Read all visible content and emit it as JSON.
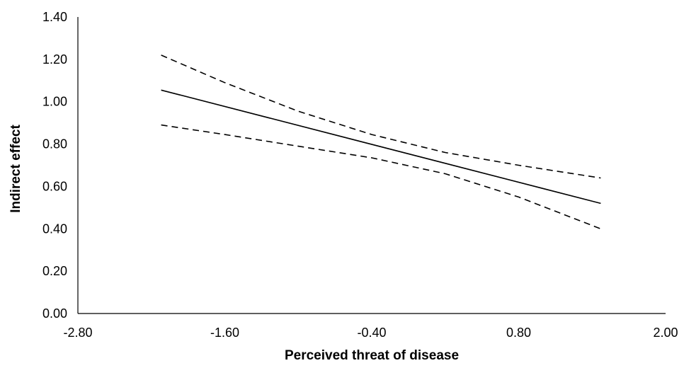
{
  "chart_data": {
    "type": "line",
    "title": "",
    "xlabel": "Perceived threat of disease",
    "ylabel": "Indirect effect",
    "xlim": [
      -2.8,
      2.0
    ],
    "ylim": [
      0.0,
      1.4
    ],
    "x_ticks": [
      "-2.80",
      "-1.60",
      "-0.40",
      "0.80",
      "2.00"
    ],
    "y_ticks": [
      "0.00",
      "0.20",
      "0.40",
      "0.60",
      "0.80",
      "1.00",
      "1.20",
      "1.40"
    ],
    "grid": false,
    "legend": "none",
    "series": [
      {
        "style": "solid",
        "color": "#000000",
        "x": [
          -2.12,
          1.47
        ],
        "y": [
          1.055,
          0.52
        ]
      },
      {
        "style": "dashed",
        "color": "#000000",
        "x": [
          -2.12,
          -1.6,
          -1.0,
          -0.4,
          0.2,
          0.8,
          1.47
        ],
        "y": [
          1.22,
          1.09,
          0.955,
          0.845,
          0.76,
          0.7,
          0.64
        ]
      },
      {
        "style": "dashed",
        "color": "#000000",
        "x": [
          -2.12,
          -1.6,
          -1.0,
          -0.4,
          0.2,
          0.8,
          1.47
        ],
        "y": [
          0.89,
          0.845,
          0.79,
          0.735,
          0.66,
          0.55,
          0.4
        ]
      }
    ]
  }
}
